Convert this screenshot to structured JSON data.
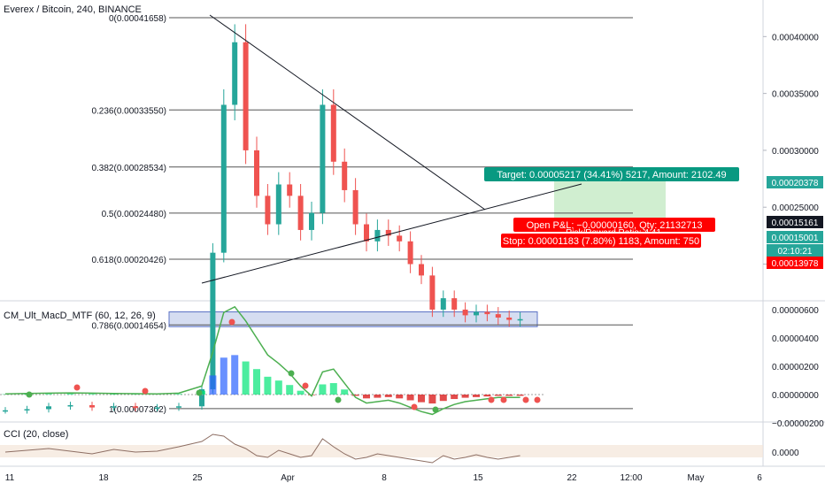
{
  "header": {
    "title": "Everex / Bitcoin, 240, BINANCE"
  },
  "colors": {
    "up": "#26a69a",
    "down": "#ef5350",
    "fib": "#555555",
    "zone_fill": "#b3c1e6",
    "target_fill": "#c8ebc8",
    "target_label": "#089981",
    "stop_label": "#ff0000",
    "price_tag_current": "#131722",
    "price_tag_up": "#26a69a",
    "price_tag_down": "#ff0000"
  },
  "main_axis": {
    "ticks": [
      {
        "value": 0.0004,
        "label": "0.00040000"
      },
      {
        "value": 0.00035,
        "label": "0.00035000"
      },
      {
        "value": 0.0003,
        "label": "0.00030000"
      },
      {
        "value": 0.00025,
        "label": "0.00025000"
      },
      {
        "value": 0.0002,
        "label": "0.00020000"
      }
    ],
    "price_tags": [
      {
        "label": "0.00020378",
        "value": 0.00020378,
        "kind": "up"
      },
      {
        "label": "0.00015161",
        "value": 0.00015161,
        "kind": "current"
      },
      {
        "label": "0.00015001",
        "value": 0.00015001,
        "kind": "up"
      },
      {
        "label": "02:10:21",
        "value": 0.00013,
        "kind": "timer"
      },
      {
        "label": "0.00013978",
        "value": 0.00011,
        "kind": "down"
      }
    ]
  },
  "fib_levels": [
    {
      "label": "0(0.00041658)",
      "value": 0.00041658
    },
    {
      "label": "0.236(0.00033550)",
      "value": 0.0003355
    },
    {
      "label": "0.382(0.00028534)",
      "value": 0.00028534
    },
    {
      "label": "0.5(0.00024480)",
      "value": 0.0002448
    },
    {
      "label": "0.618(0.00020426)",
      "value": 0.00020426
    },
    {
      "label": "0.786(0.00014654)",
      "value": 0.00014654
    },
    {
      "label": "1(0.00007302)",
      "value": 7.302e-05
    }
  ],
  "position": {
    "target_label": "Target: 0.00005217 (34.41%) 5217, Amount: 2102.49",
    "pnl_label": "Open P&L: −0.00000160, Qty: 21132713",
    "rr_label": "Risk/Reward Ratio: 4.41",
    "stop_label": "Stop: 0.00001183 (7.80%) 1183, Amount: 750"
  },
  "macd": {
    "title": "CM_Ult_MacD_MTF (60, 12, 26, 9)",
    "ticks": [
      {
        "value": 6e-06,
        "label": "0.00000600"
      },
      {
        "value": 4e-06,
        "label": "0.00000400"
      },
      {
        "value": 2e-06,
        "label": "0.00000200"
      },
      {
        "value": 0.0,
        "label": "0.00000000"
      },
      {
        "value": -2e-06,
        "label": "−0.00000200"
      }
    ]
  },
  "cci": {
    "title": "CCI (20, close)",
    "ticks": [
      {
        "value": 0,
        "label": "0.0000"
      }
    ]
  },
  "time_axis": {
    "labels": [
      "11",
      "18",
      "25",
      "Apr",
      "8",
      "15",
      "22",
      "12:00",
      "May",
      "6"
    ]
  },
  "chart_data": {
    "type": "candlestick",
    "title": "Everex / Bitcoin, 240, BINANCE",
    "xlabel": "",
    "ylabel": "",
    "ylim": [
      5e-05,
      0.00043
    ],
    "x": [
      "2019-03-09",
      "2019-03-11",
      "2019-03-13",
      "2019-03-15",
      "2019-03-17",
      "2019-03-19",
      "2019-03-21",
      "2019-03-23",
      "2019-03-24",
      "2019-03-25",
      "2019-03-25",
      "2019-03-26",
      "2019-03-26",
      "2019-03-26",
      "2019-03-27",
      "2019-03-27",
      "2019-03-28",
      "2019-03-29",
      "2019-03-30",
      "2019-03-31",
      "2019-04-01",
      "2019-04-01",
      "2019-04-02",
      "2019-04-03",
      "2019-04-04",
      "2019-04-05",
      "2019-04-06",
      "2019-04-07",
      "2019-04-08",
      "2019-04-09",
      "2019-04-10",
      "2019-04-11",
      "2019-04-12",
      "2019-04-13",
      "2019-04-14",
      "2019-04-15",
      "2019-04-16",
      "2019-04-17",
      "2019-04-18"
    ],
    "close": [
      7.15e-05,
      7.25e-05,
      7.5e-05,
      7.6e-05,
      7.4e-05,
      7.5e-05,
      7.35e-05,
      7.4e-05,
      7.5e-05,
      9e-05,
      0.00021,
      0.00034,
      0.000395,
      0.0003,
      0.00026,
      0.000235,
      0.00027,
      0.00026,
      0.00023,
      0.000245,
      0.00034,
      0.00029,
      0.000265,
      0.000235,
      0.00022,
      0.00023,
      0.000225,
      0.00022,
      0.0002,
      0.00019,
      0.00016,
      0.00017,
      0.00016,
      0.000155,
      0.000158,
      0.000156,
      0.000153,
      0.000151,
      0.00015161
    ],
    "macd_line": [
      5e-08,
      8e-08,
      1e-07,
      1.2e-07,
      1e-07,
      8e-08,
      6e-08,
      5e-08,
      1e-07,
      6e-07,
      3e-06,
      5.8e-06,
      6.2e-06,
      5.2e-06,
      4e-06,
      2.8e-06,
      2.2e-06,
      1.5e-06,
      6e-07,
      -1e-07,
      1.6e-06,
      1.8e-06,
      8e-07,
      -2e-07,
      -6e-07,
      -5e-07,
      -4e-07,
      -6e-07,
      -9e-07,
      -1.2e-06,
      -1.4e-06,
      -1e-06,
      -7e-07,
      -5e-07,
      -4e-07,
      -3e-07,
      -2e-07,
      -2e-07,
      -2e-07
    ],
    "cci": [
      0,
      20,
      40,
      10,
      -20,
      30,
      0,
      10,
      60,
      120,
      200,
      180,
      90,
      40,
      -40,
      -60,
      20,
      -20,
      -60,
      -40,
      150,
      60,
      -20,
      -80,
      -60,
      -20,
      -40,
      -60,
      -80,
      -100,
      -120,
      -40,
      -80,
      -60,
      -30,
      -60,
      -80,
      -60,
      -40
    ]
  }
}
